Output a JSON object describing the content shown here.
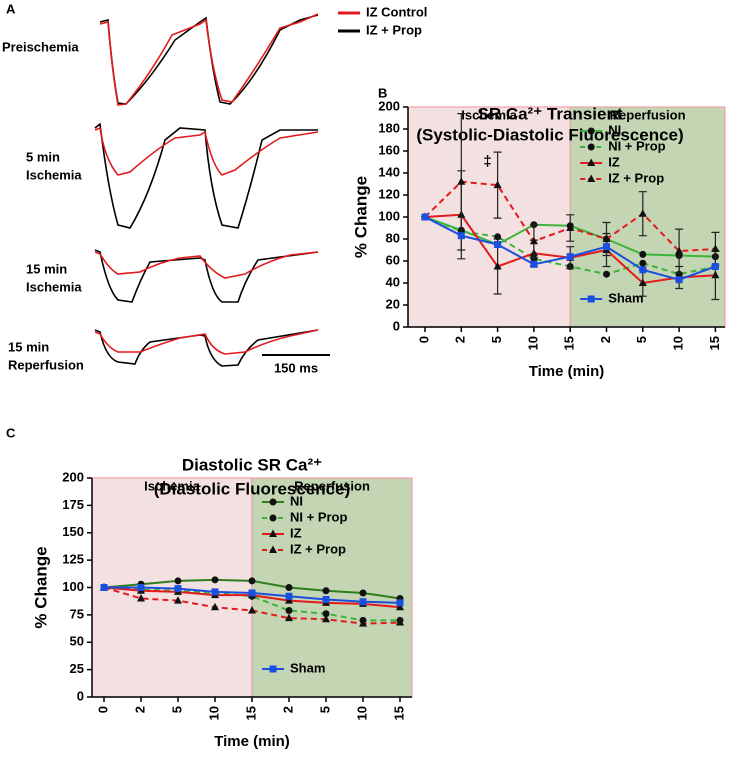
{
  "panel_labels": [
    "A",
    "B",
    "C"
  ],
  "traces": {
    "legend": [
      {
        "name": "IZ Control",
        "color": "#e31a1c"
      },
      {
        "name": "IZ + Prop",
        "color": "#000000"
      }
    ],
    "conditions": [
      [
        "Preischemia"
      ],
      [
        "5 min",
        "Ischemia"
      ],
      [
        "15 min",
        "Ischemia"
      ],
      [
        "15 min",
        "Reperfusion"
      ]
    ],
    "scale_bar": "150 ms"
  },
  "chart_data": [
    {
      "type": "line",
      "title": [
        "SR Ca²⁺ Transient",
        "(Systolic-Diastolic Fluorescence)"
      ],
      "x_label": "Time (min)",
      "y_label": "% Change",
      "categories": [
        "0",
        "2",
        "5",
        "10",
        "15",
        "2",
        "5",
        "10",
        "15"
      ],
      "regions": [
        {
          "label": "Ischemia",
          "color": "#f3e1e1"
        },
        {
          "label": "Reperfusion",
          "color": "#c3d5b3"
        }
      ],
      "annotation": "‡",
      "ylim": [
        0,
        200
      ],
      "yticks": [
        0,
        20,
        40,
        60,
        80,
        100,
        120,
        140,
        160,
        180,
        200
      ],
      "legend": "top-right",
      "series": [
        {
          "name": "NI",
          "color": "#3cb43c",
          "dash": false,
          "marker": "circle",
          "values": [
            100,
            88,
            75,
            93,
            92,
            80,
            66,
            65,
            64
          ]
        },
        {
          "name": "NI + Prop",
          "color": "#3cb43c",
          "dash": true,
          "marker": "circle",
          "values": [
            100,
            87,
            82,
            62,
            55,
            48,
            58,
            48,
            55
          ]
        },
        {
          "name": "IZ",
          "color": "#e31a1c",
          "dash": false,
          "marker": "triangle",
          "values": [
            100,
            102,
            55,
            67,
            63,
            70,
            40,
            45,
            47
          ],
          "errors": [
            0,
            40,
            25,
            12,
            10,
            15,
            12,
            10,
            22
          ]
        },
        {
          "name": "IZ + Prop",
          "color": "#e31a1c",
          "dash": true,
          "marker": "triangle",
          "values": [
            100,
            132,
            129,
            78,
            90,
            80,
            103,
            69,
            71
          ],
          "errors": [
            0,
            62,
            30,
            15,
            12,
            15,
            20,
            20,
            15
          ]
        },
        {
          "name": "Sham",
          "color": "#1a4fe0",
          "dash": false,
          "marker": "square",
          "values": [
            100,
            83,
            75,
            57,
            64,
            73,
            52,
            43,
            55
          ]
        }
      ]
    },
    {
      "type": "line",
      "title": [
        "Diastolic SR Ca²⁺",
        "(Diastolic Fluorescence)"
      ],
      "x_label": "Time (min)",
      "y_label": "% Change",
      "categories": [
        "0",
        "2",
        "5",
        "10",
        "15",
        "2",
        "5",
        "10",
        "15"
      ],
      "regions": [
        {
          "label": "Ischemia",
          "color": "#f3e1e1"
        },
        {
          "label": "Reperfusion",
          "color": "#c3d5b3"
        }
      ],
      "ylim": [
        0,
        200
      ],
      "yticks": [
        0,
        25,
        50,
        75,
        100,
        125,
        150,
        175,
        200
      ],
      "legend": "top-right",
      "series": [
        {
          "name": "NI",
          "color": "#2e7d1e",
          "dash": false,
          "marker": "circle",
          "values": [
            100,
            103,
            106,
            107,
            106,
            100,
            97,
            95,
            90
          ]
        },
        {
          "name": "NI + Prop",
          "color": "#3cb43c",
          "dash": true,
          "marker": "circle",
          "values": [
            100,
            98,
            97,
            95,
            92,
            79,
            76,
            70,
            70
          ]
        },
        {
          "name": "IZ",
          "color": "#e31a1c",
          "dash": false,
          "marker": "triangle",
          "values": [
            100,
            97,
            96,
            93,
            93,
            88,
            86,
            85,
            82
          ]
        },
        {
          "name": "IZ + Prop",
          "color": "#e31a1c",
          "dash": true,
          "marker": "triangle",
          "values": [
            100,
            90,
            88,
            82,
            79,
            72,
            71,
            67,
            68
          ]
        },
        {
          "name": "Sham",
          "color": "#1a4fe0",
          "dash": false,
          "marker": "square",
          "values": [
            100,
            100,
            99,
            96,
            95,
            92,
            89,
            87,
            86
          ]
        }
      ]
    }
  ]
}
